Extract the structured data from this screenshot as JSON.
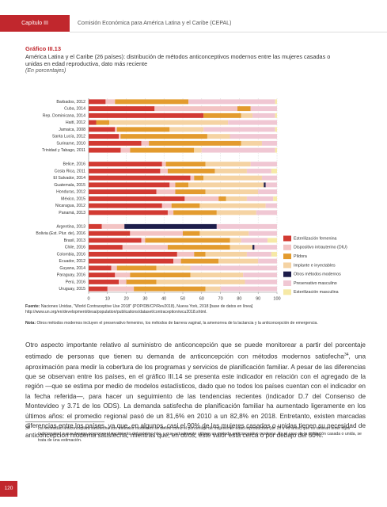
{
  "header": {
    "chapter": "Capítulo III",
    "org": "Comisión Económica para América Latina y el Caribe (CEPAL)"
  },
  "chart_data": {
    "type": "bar",
    "orientation": "horizontal",
    "stacked": true,
    "title": "Gráfico III.13",
    "subtitle": "América Latina y el Caribe (26 países): distribución de métodos anticonceptivos modernos entre las mujeres casadas o unidas en edad reproductiva, dato más reciente",
    "unit_note": "(En porcentajes)",
    "categories": [
      "Barbados, 2012",
      "Cuba, 2014",
      "Rep. Dominicana, 2014",
      "Haití, 2012",
      "Jamaica, 2008",
      "Santa Lucía, 2012",
      "Suriname, 2010",
      "Trinidad y Tabago, 2011",
      null,
      "Belice, 2016",
      "Costa Rica, 2011",
      "El Salvador, 2014",
      "Guatemala, 2015",
      "Honduras, 2012",
      "México, 2015",
      "Nicaragua, 2012",
      "Panamá, 2013",
      null,
      "Argentina, 2013",
      "Bolivia (Est. Plur. de), 2016",
      "Brasil, 2013",
      "Chile, 2016",
      "Colombia, 2016",
      "Ecuador, 2012",
      "Guyana, 2014",
      "Paraguay, 2016",
      "Perú, 2016",
      "Uruguay, 2015"
    ],
    "series": [
      {
        "name": "Esterilización femenina",
        "color": "#d23a32",
        "values": [
          9,
          35,
          61,
          4,
          14,
          16,
          28,
          17,
          null,
          39,
          38,
          54,
          43,
          36,
          51,
          39,
          42,
          null,
          7,
          22,
          28,
          18,
          47,
          45,
          12,
          14,
          16,
          10
        ]
      },
      {
        "name": "Dispositivo intrauterino (DIU)",
        "color": "#f3c3c3",
        "values": [
          5,
          44,
          0,
          0,
          1,
          1,
          4,
          5,
          null,
          2,
          4,
          2,
          3,
          10,
          18,
          5,
          3,
          null,
          12,
          28,
          2,
          24,
          9,
          4,
          3,
          8,
          4,
          14
        ]
      },
      {
        "name": "Píldora",
        "color": "#e39b2e",
        "values": [
          39,
          7,
          20,
          7,
          28,
          46,
          49,
          34,
          null,
          21,
          25,
          5,
          7,
          16,
          4,
          15,
          23,
          null,
          0,
          9,
          45,
          33,
          6,
          20,
          21,
          32,
          16,
          38
        ]
      },
      {
        "name": "Implante e inyectables",
        "color": "#f5d3a3",
        "values": [
          0,
          0,
          6,
          63,
          18,
          12,
          11,
          4,
          null,
          24,
          17,
          31,
          40,
          28,
          11,
          35,
          21,
          null,
          0,
          26,
          6,
          12,
          22,
          21,
          18,
          28,
          47,
          8
        ]
      },
      {
        "name": "Otros métodos modernos",
        "color": "#1d1d4a",
        "values": [
          0,
          0,
          0,
          0,
          0,
          0,
          0,
          0,
          null,
          0,
          0,
          0,
          1,
          0,
          0,
          0,
          0,
          null,
          49,
          0,
          0,
          1,
          0,
          0,
          0,
          0,
          0,
          0
        ]
      },
      {
        "name": "Preservativo masculino",
        "color": "#f0c7d3",
        "values": [
          46,
          14,
          12,
          26,
          38,
          25,
          8,
          39,
          null,
          14,
          13,
          8,
          6,
          10,
          14,
          6,
          11,
          null,
          32,
          15,
          14,
          12,
          13,
          10,
          46,
          18,
          17,
          30
        ]
      },
      {
        "name": "Esterilización masculina",
        "color": "#f6e9a6",
        "values": [
          1,
          0,
          1,
          0,
          1,
          0,
          0,
          1,
          null,
          0,
          3,
          0,
          0,
          0,
          2,
          0,
          0,
          null,
          0,
          0,
          5,
          0,
          3,
          0,
          0,
          0,
          0,
          0
        ]
      }
    ],
    "xlim": [
      0,
      100
    ],
    "xticks": [
      0,
      10,
      20,
      30,
      40,
      50,
      60,
      70,
      80,
      90,
      100
    ],
    "grid": true,
    "legend": "right"
  },
  "source": {
    "label": "Fuente:",
    "text": "Naciones Unidas, \"World Contraceptive Use 2018\" (POP/DB/CP/Rev2018), Nueva York, 2018 [base de datos en línea] http://www.un.org/en/development/desa/population/publications/dataset/contraception/wcu2018.shtml."
  },
  "note": {
    "label": "Nota:",
    "text": "Otros métodos modernos incluyen el preservativo femenino, los métodos de barrera vaginal, la amenorrea de la lactancia y la anticoncepción de emergencia."
  },
  "body": {
    "text_before": "Otro aspecto importante relativo al suministro de anticoncepción que se puede monitorear a partir del porcentaje estimado de personas que tienen su demanda de anticoncepción con métodos modernos satisfecha",
    "footnote_ref": "34",
    "text_after": ", una aproximación para medir la cobertura de los programas y servicios de planificación familiar. A pesar de las diferencias que se observan entre los países, en el gráfico III.14 se presenta este indicador en relación con el agregado de la región —que se estima por medio de modelos estadísticos, dado que no todos los países cuentan con el indicador en la fecha referida—, para hacer un seguimiento de las tendencias recientes (indicador D.7 del Consenso de Montevideo y 3.71 de los ODS). La demanda satisfecha de planificación familiar ha aumentado ligeramente en los últimos años: el promedio regional pasó de un 81,6% en 2010 a un 82,8% en 2018. Entretanto, existen marcadas diferencias entre los países, ya que, en algunos, casi el 90% de las mujeres casadas o unidas tienen su necesidad de anticoncepción moderna satisfecha, mientras que, en otros, este valor está cerca o por debajo del 50%."
  },
  "footnote": {
    "number": "34",
    "text": "La necesidad anticonceptiva satisfecha con métodos modernos se define como el porcentaje de mujeres en edad reproductiva (de 15 a 49 años) que no desean tener hijos (adicionales) o que desean posponer el nacimiento del próximo hijo, y que actualmente utilizan un método anticonceptivo moderno. En el caso de la población casada o unida, se trata de una estimación."
  },
  "page_number": "120"
}
